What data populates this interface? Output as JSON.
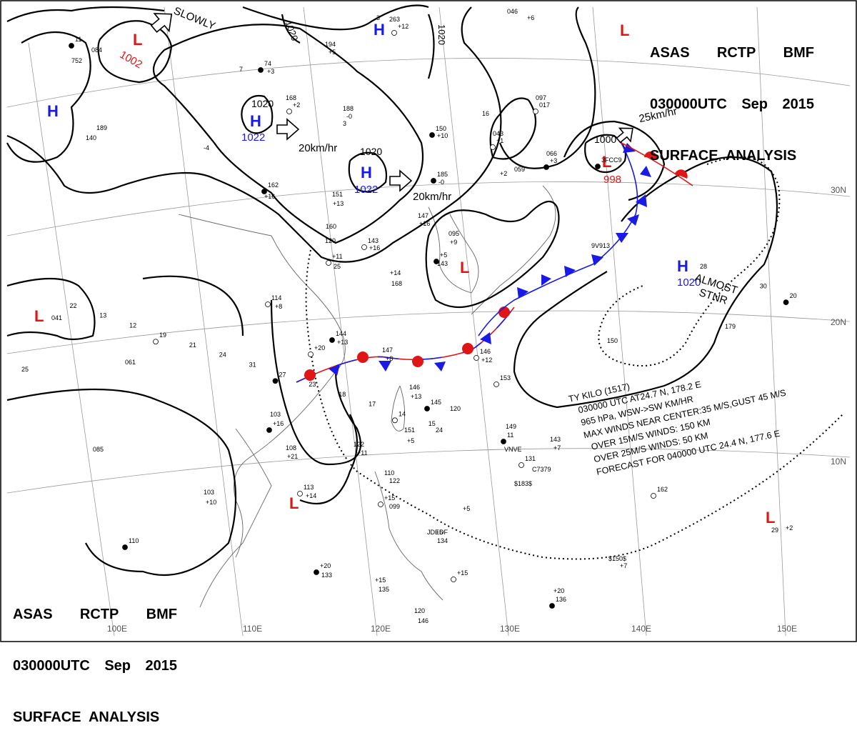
{
  "header": {
    "line1": [
      "ASAS",
      "RCTP",
      "BMF"
    ],
    "line2": [
      "030000UTC",
      "Sep",
      "2015"
    ],
    "line3": "SURFACE  ANALYSIS"
  },
  "colors": {
    "high": "#1a1ae6",
    "low": "#e01515",
    "isobar": "#000000",
    "cold_front": "#1a1ae6",
    "warm_front": "#e01515"
  },
  "graticule": {
    "lat_labels": [
      "30N",
      "20N",
      "10N"
    ],
    "lon_labels": [
      "100E",
      "110E",
      "120E",
      "130E",
      "140E",
      "150E"
    ]
  },
  "pressure_centers": [
    {
      "type": "L",
      "value": "1002",
      "name": "low-north-1002"
    },
    {
      "type": "H",
      "value": "",
      "name": "high-west"
    },
    {
      "type": "H",
      "value": "1022",
      "top": "1020",
      "name": "high-1022-west"
    },
    {
      "type": "H",
      "value": "1022",
      "top": "1020",
      "name": "high-1022-east"
    },
    {
      "type": "H",
      "value": "",
      "name": "high-north"
    },
    {
      "type": "L",
      "value": "998",
      "top": "1000",
      "name": "low-998"
    },
    {
      "type": "L",
      "value": "",
      "name": "low-northeast"
    },
    {
      "type": "H",
      "value": "1020",
      "name": "high-1020-east"
    },
    {
      "type": "L",
      "value": "",
      "name": "low-west"
    },
    {
      "type": "L",
      "value": "",
      "name": "low-china"
    },
    {
      "type": "L",
      "value": "",
      "name": "low-korea"
    },
    {
      "type": "L",
      "value": "",
      "name": "low-southeast"
    }
  ],
  "isobar_labels": [
    "1020",
    "1020"
  ],
  "movements": [
    "SLOWLY",
    "20km/hr",
    "20km/hr",
    "25km/hr"
  ],
  "almost_stnr": [
    "ALMOST",
    "STNR"
  ],
  "typhoon": {
    "lines": [
      "TY  KILO  (1517)",
      "030000 UTC  AT24.7 N, 178.2 E",
      "965 hPa, WSW->SW   KM/HR",
      "MAX WINDS NEAR CENTER:35 M/S,GUST 45 M/S",
      "OVER 15M/S WINDS: 150 KM",
      "OVER 25M/S WINDS: 50 KM",
      "FORECAST FOR 040000 UTC 24.4 N, 177.6 E"
    ]
  },
  "stations": [
    "11",
    "084",
    "752",
    "263",
    "+12",
    "3",
    "194",
    "+5",
    "74",
    "+3",
    "7",
    "168",
    "+2",
    "188",
    "-0",
    "3",
    "150",
    "+10",
    "16",
    "043",
    "+1",
    "059",
    "+2",
    "066",
    "+3",
    "046",
    "+6",
    "097",
    "017",
    "189",
    "140",
    "-4",
    "162",
    "+16",
    "151",
    "+13",
    "143",
    "+16",
    "147",
    "+16",
    "185",
    "-0",
    "095",
    "+9",
    "114",
    "+8",
    "160",
    "120",
    "+5",
    "143",
    "+14",
    "168",
    "+11",
    "25",
    "041",
    "061",
    "144",
    "+13",
    "147",
    "+8",
    "146",
    "+12",
    "146",
    "+13",
    "145",
    "120",
    "151",
    "+5",
    "153",
    "122",
    "+11",
    "149",
    "11",
    "143",
    "+7",
    "VNVE",
    "131",
    "C7379",
    "$183$",
    "103",
    "+16",
    "085",
    "108",
    "+21",
    "113",
    "+14",
    "103",
    "+10",
    "110",
    "+5",
    "110",
    "122",
    "+15",
    "099",
    "+5",
    "134",
    "+20",
    "133",
    "+15",
    "135",
    "+15",
    "120",
    "146",
    "+20",
    "136",
    "+2",
    "150",
    "179",
    "162",
    "29",
    "24",
    "9V913",
    "3FCC9",
    "JDEDF",
    "$150$",
    "+7",
    "+20",
    "28",
    "25",
    "30",
    "20",
    "22",
    "13",
    "12",
    "19",
    "21",
    "24",
    "31",
    "27",
    "23",
    "18",
    "17",
    "14",
    "15"
  ]
}
